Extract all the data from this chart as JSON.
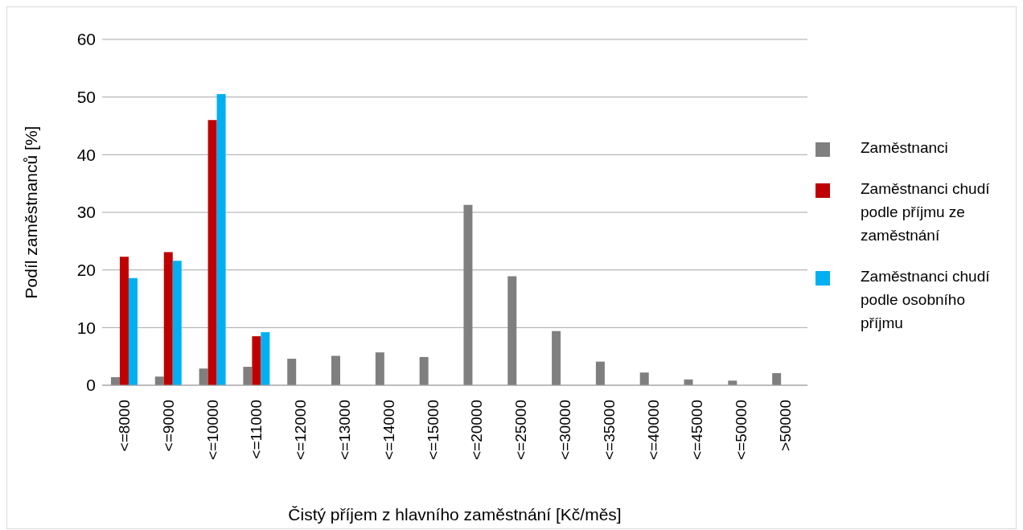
{
  "chart_data": {
    "type": "bar",
    "xlabel": "Čistý příjem z hlavního zaměstnání [Kč/měs]",
    "ylabel": "Podíl zaměstnanců [%]",
    "categories": [
      "<=8000",
      "<=9000",
      "<=10000",
      "<=11000",
      "<=12000",
      "<=13000",
      "<=14000",
      "<=15000",
      "<=20000",
      "<=25000",
      "<=30000",
      "<=35000",
      "<=40000",
      "<=45000",
      "<=50000",
      ">50000"
    ],
    "series": [
      {
        "name": "Zaměstnanci",
        "color": "#7f7f7f",
        "values": [
          1.4,
          1.5,
          2.9,
          3.2,
          4.6,
          5.1,
          5.7,
          4.9,
          31.3,
          18.9,
          9.4,
          4.1,
          2.2,
          1.0,
          0.8,
          2.1
        ]
      },
      {
        "name": "Zaměstnanci chudí podle příjmu ze zaměstnání",
        "color": "#c00000",
        "values": [
          22.3,
          23.1,
          46.0,
          8.5,
          null,
          null,
          null,
          null,
          null,
          null,
          null,
          null,
          null,
          null,
          null,
          null
        ]
      },
      {
        "name": "Zaměstnanci chudí podle osobního příjmu",
        "color": "#00b0f0",
        "values": [
          18.6,
          21.6,
          50.5,
          9.2,
          null,
          null,
          null,
          null,
          null,
          null,
          null,
          null,
          null,
          null,
          null,
          null
        ]
      }
    ],
    "ylim": [
      0,
      60
    ],
    "yticks": [
      0,
      10,
      20,
      30,
      40,
      50,
      60
    ],
    "grid": "y",
    "legend": "right"
  }
}
